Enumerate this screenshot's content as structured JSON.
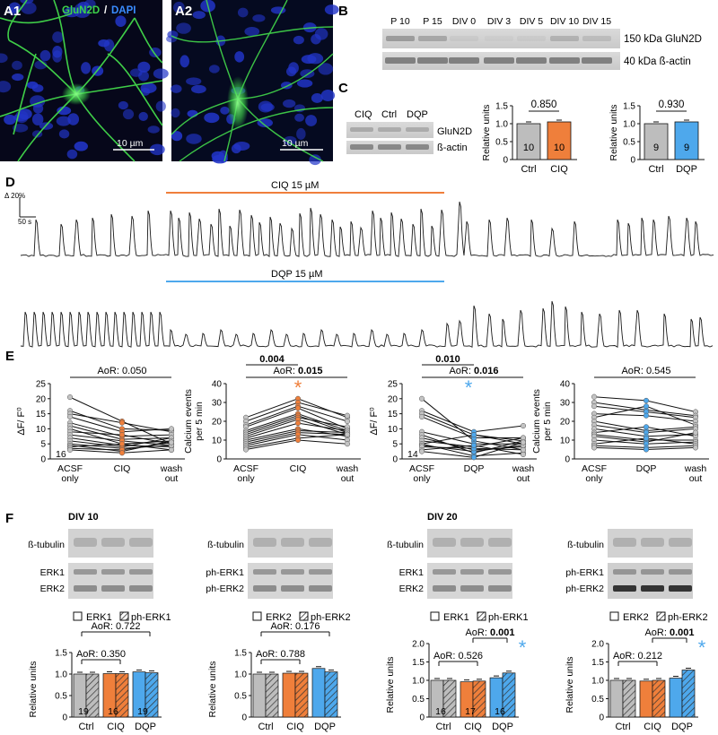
{
  "panel_letters": {
    "A1": "A1",
    "A2": "A2",
    "B": "B",
    "C": "C",
    "D": "D",
    "E": "E",
    "F": "F"
  },
  "colors": {
    "ctrl": "#bdbdbd",
    "ciq": "#ef7f3b",
    "dqp": "#4ea8ec",
    "micrograph_green": "#3dd44a",
    "micrograph_blue": "#2235c8",
    "gray_points": "#c4c4c4"
  },
  "panel_A": {
    "legend_green": "GluN2D",
    "legend_sep": "/",
    "legend_blue": "DAPI",
    "scale_bar_a1": "10 µm",
    "scale_bar_a2": "10 µm"
  },
  "panel_B": {
    "lanes": [
      "P 10",
      "P 15",
      "DIV 0",
      "DIV 3",
      "DIV 5",
      "DIV 10",
      "DIV 15"
    ],
    "label_top": "150 kDa GluN2D",
    "label_bottom": "40 kDa ß-actin"
  },
  "panel_C": {
    "blot_lanes": [
      "CIQ",
      "Ctrl",
      "DQP"
    ],
    "blot_label_top": "GluN2D",
    "blot_label_bottom": "ß-actin",
    "ylabel": "Relative units",
    "chart_ciq": {
      "categories": [
        "Ctrl",
        "CIQ"
      ],
      "values": [
        1.0,
        1.05
      ],
      "n": [
        "10",
        "10"
      ],
      "p": "0.850",
      "yticks": [
        "0",
        "0.5",
        "1.0",
        "1.5"
      ]
    },
    "chart_dqp": {
      "categories": [
        "Ctrl",
        "DQP"
      ],
      "values": [
        1.0,
        1.05
      ],
      "n": [
        "9",
        "9"
      ],
      "p": "0.930",
      "yticks": [
        "0",
        "0.5",
        "1.0",
        "1.5"
      ]
    }
  },
  "panel_D": {
    "scale_y": "Δ 20%",
    "scale_x": "50 s",
    "ciq_label": "CIQ 15 µM",
    "dqp_label": "DQP 15 µM"
  },
  "panel_E": {
    "plot1": {
      "aor_label": "AoR: 0.050",
      "ylabel": "ΔF/ F⁰",
      "yticks": [
        "0",
        "5",
        "10",
        "15",
        "20",
        "25"
      ],
      "xt": [
        "ACSF only",
        "CIQ",
        "wash out"
      ],
      "n": "16"
    },
    "plot2": {
      "p_top": "0.004",
      "aor_prefix": "AoR: ",
      "aor_value": "0.015",
      "ylabel_1": "Calcium events",
      "ylabel_2": "per 5 min",
      "yticks": [
        "0",
        "10",
        "20",
        "30",
        "40"
      ],
      "xt": [
        "ACSF only",
        "CIQ",
        "wash out"
      ],
      "star": "*"
    },
    "plot3": {
      "p_top": "0.010",
      "aor_prefix": "AoR: ",
      "aor_value": "0.016",
      "ylabel": "ΔF/ F⁰",
      "yticks": [
        "0",
        "5",
        "10",
        "15",
        "20",
        "25"
      ],
      "xt": [
        "ACSF only",
        "DQP",
        "wash out"
      ],
      "n": "14",
      "star": "*"
    },
    "plot4": {
      "aor_label": "AoR: 0.545",
      "ylabel_1": "Calcium events",
      "ylabel_2": "per 5 min",
      "yticks": [
        "0",
        "10",
        "20",
        "30",
        "40"
      ],
      "xt": [
        "ACSF only",
        "DQP",
        "wash out"
      ]
    }
  },
  "panel_F": {
    "div10": "DIV 10",
    "div20": "DIV 20",
    "blots": [
      {
        "top": "ß-tubulin",
        "mid1": "ERK1",
        "mid2": "ERK2"
      },
      {
        "top": "ß-tubulin",
        "mid1": "ph-ERK1",
        "mid2": "ph-ERK2"
      },
      {
        "top": "ß-tubulin",
        "mid1": "ERK1",
        "mid2": "ERK2"
      },
      {
        "top": "ß-tubulin",
        "mid1": "ph-ERK1",
        "mid2": "ph-ERK2"
      }
    ],
    "legends": [
      {
        "solid": "ERK1",
        "hatched": "ph-ERK1"
      },
      {
        "solid": "ERK2",
        "hatched": "ph-ERK2"
      },
      {
        "solid": "ERK1",
        "hatched": "ph-ERK1"
      },
      {
        "solid": "ERK2",
        "hatched": "ph-ERK2"
      }
    ],
    "ylabel": "Relative units",
    "yticks_a": [
      "0",
      "0.5",
      "1.0",
      "1.5"
    ],
    "yticks_b": [
      "0",
      "0.5",
      "1.0",
      "1.5",
      "2.0"
    ]
  },
  "chart_data": [
    {
      "type": "bar",
      "title": "",
      "categories": [
        "Ctrl",
        "CIQ"
      ],
      "values": [
        1.0,
        1.05
      ],
      "ylabel": "Relative units",
      "ylim": [
        0,
        1.5
      ],
      "annotation": "0.850"
    },
    {
      "type": "bar",
      "title": "",
      "categories": [
        "Ctrl",
        "DQP"
      ],
      "values": [
        1.0,
        1.05
      ],
      "ylabel": "Relative units",
      "ylim": [
        0,
        1.5
      ],
      "annotation": "0.930"
    },
    {
      "type": "bar",
      "title": "DIV 10",
      "categories": [
        "Ctrl",
        "CIQ",
        "DQP"
      ],
      "series": [
        {
          "name": "ERK1",
          "values": [
            1.0,
            1.01,
            1.05
          ]
        },
        {
          "name": "ph-ERK1",
          "values": [
            1.0,
            1.01,
            1.03
          ]
        }
      ],
      "n": [
        "19",
        "16",
        "19"
      ],
      "annotations": [
        "AoR: 0.722",
        "AoR: 0.350"
      ],
      "ylabel": "Relative units",
      "ylim": [
        0,
        1.5
      ]
    },
    {
      "type": "bar",
      "title": "",
      "categories": [
        "Ctrl",
        "CIQ",
        "DQP"
      ],
      "series": [
        {
          "name": "ERK2",
          "values": [
            1.0,
            1.02,
            1.13
          ]
        },
        {
          "name": "ph-ERK2",
          "values": [
            1.0,
            1.02,
            1.05
          ]
        }
      ],
      "annotations": [
        "AoR: 0.176",
        "AoR: 0.788"
      ],
      "ylabel": "Relative units",
      "ylim": [
        0,
        1.5
      ]
    },
    {
      "type": "bar",
      "title": "DIV 20",
      "categories": [
        "Ctrl",
        "CIQ",
        "DQP"
      ],
      "series": [
        {
          "name": "ERK1",
          "values": [
            1.0,
            0.96,
            1.07
          ]
        },
        {
          "name": "ph-ERK1",
          "values": [
            1.0,
            0.98,
            1.2
          ]
        }
      ],
      "n": [
        "16",
        "17",
        "16"
      ],
      "annotations": [
        "AoR: 0.001",
        "AoR: 0.526"
      ],
      "ylabel": "Relative units",
      "ylim": [
        0,
        2.0
      ]
    },
    {
      "type": "bar",
      "title": "",
      "categories": [
        "Ctrl",
        "CIQ",
        "DQP"
      ],
      "series": [
        {
          "name": "ERK2",
          "values": [
            1.0,
            0.98,
            1.06
          ]
        },
        {
          "name": "ph-ERK2",
          "values": [
            1.0,
            1.0,
            1.28
          ]
        }
      ],
      "annotations": [
        "AoR: 0.001",
        "AoR: 0.212"
      ],
      "ylabel": "Relative units",
      "ylim": [
        0,
        2.0
      ]
    },
    {
      "type": "scatter",
      "title": "",
      "x": [
        "ACSF only",
        "CIQ",
        "wash out"
      ],
      "series": [
        {
          "values": [
            20.5,
            12.5,
            5.0
          ]
        },
        {
          "values": [
            16.0,
            10.0,
            9.5
          ]
        },
        {
          "values": [
            15.0,
            12.0,
            9.0
          ]
        },
        {
          "values": [
            14.0,
            9.0,
            10.0
          ]
        },
        {
          "values": [
            12.0,
            7.5,
            8.0
          ]
        },
        {
          "values": [
            11.0,
            6.5,
            7.0
          ]
        },
        {
          "values": [
            10.0,
            5.0,
            6.0
          ]
        },
        {
          "values": [
            9.0,
            8.0,
            5.0
          ]
        },
        {
          "values": [
            8.0,
            6.0,
            4.5
          ]
        },
        {
          "values": [
            7.0,
            4.5,
            4.0
          ]
        },
        {
          "values": [
            6.0,
            4.0,
            7.0
          ]
        },
        {
          "values": [
            5.0,
            3.5,
            4.5
          ]
        },
        {
          "values": [
            4.5,
            2.5,
            6.0
          ]
        },
        {
          "values": [
            4.0,
            5.0,
            3.0
          ]
        },
        {
          "values": [
            3.5,
            3.0,
            5.5
          ]
        },
        {
          "values": [
            3.0,
            2.0,
            3.0
          ]
        }
      ],
      "ylabel": "ΔF/ F⁰",
      "ylim": [
        0,
        25
      ],
      "annotation": "AoR: 0.050"
    },
    {
      "type": "scatter",
      "title": "",
      "x": [
        "ACSF only",
        "CIQ",
        "wash out"
      ],
      "series": [
        {
          "values": [
            22,
            32,
            22
          ]
        },
        {
          "values": [
            20,
            30,
            23
          ]
        },
        {
          "values": [
            18,
            28,
            20
          ]
        },
        {
          "values": [
            17,
            27,
            16
          ]
        },
        {
          "values": [
            15,
            24,
            15
          ]
        },
        {
          "values": [
            14,
            23,
            14
          ]
        },
        {
          "values": [
            13,
            22,
            17
          ]
        },
        {
          "values": [
            12,
            21,
            13
          ]
        },
        {
          "values": [
            11,
            19,
            15
          ]
        },
        {
          "values": [
            10,
            16,
            12
          ]
        },
        {
          "values": [
            9,
            15,
            14
          ]
        },
        {
          "values": [
            8,
            14,
            13
          ]
        },
        {
          "values": [
            7,
            13,
            10
          ]
        },
        {
          "values": [
            6,
            11,
            13
          ]
        },
        {
          "values": [
            5,
            10,
            8
          ]
        }
      ],
      "ylabel": "Calcium events per 5 min",
      "ylim": [
        0,
        40
      ],
      "annotations": [
        "0.004",
        "AoR: 0.015"
      ]
    },
    {
      "type": "scatter",
      "title": "",
      "x": [
        "ACSF only",
        "DQP",
        "wash out"
      ],
      "series": [
        {
          "values": [
            20,
            6,
            3
          ]
        },
        {
          "values": [
            16,
            9,
            11
          ]
        },
        {
          "values": [
            15,
            8,
            6
          ]
        },
        {
          "values": [
            14,
            7,
            7
          ]
        },
        {
          "values": [
            9,
            5,
            5
          ]
        },
        {
          "values": [
            8,
            2,
            6
          ]
        },
        {
          "values": [
            7,
            3,
            4
          ]
        },
        {
          "values": [
            6,
            4,
            7
          ]
        },
        {
          "values": [
            5,
            1,
            2
          ]
        },
        {
          "values": [
            5,
            8,
            5
          ]
        },
        {
          "values": [
            4.5,
            2.5,
            4.5
          ]
        },
        {
          "values": [
            4,
            3.5,
            3
          ]
        },
        {
          "values": [
            3,
            4.5,
            1.5
          ]
        },
        {
          "values": [
            2.5,
            0.5,
            5.5
          ]
        }
      ],
      "ylabel": "ΔF/ F⁰",
      "ylim": [
        0,
        25
      ],
      "annotations": [
        "0.010",
        "AoR: 0.016"
      ]
    },
    {
      "type": "scatter",
      "title": "",
      "x": [
        "ACSF only",
        "DQP",
        "wash out"
      ],
      "series": [
        {
          "values": [
            33,
            31,
            25
          ]
        },
        {
          "values": [
            30,
            26,
            23
          ]
        },
        {
          "values": [
            28,
            25,
            22
          ]
        },
        {
          "values": [
            24,
            23,
            20
          ]
        },
        {
          "values": [
            22,
            28,
            18
          ]
        },
        {
          "values": [
            20,
            15,
            17
          ]
        },
        {
          "values": [
            18,
            14,
            16
          ]
        },
        {
          "values": [
            16,
            12,
            13
          ]
        },
        {
          "values": [
            14,
            17,
            12
          ]
        },
        {
          "values": [
            13,
            10,
            10
          ]
        },
        {
          "values": [
            12,
            9,
            14
          ]
        },
        {
          "values": [
            10,
            8,
            9
          ]
        },
        {
          "values": [
            8,
            11,
            8
          ]
        },
        {
          "values": [
            7,
            6,
            7
          ]
        },
        {
          "values": [
            6,
            5,
            6
          ]
        }
      ],
      "ylabel": "Calcium events per 5 min",
      "ylim": [
        0,
        40
      ],
      "annotation": "AoR: 0.545"
    }
  ]
}
